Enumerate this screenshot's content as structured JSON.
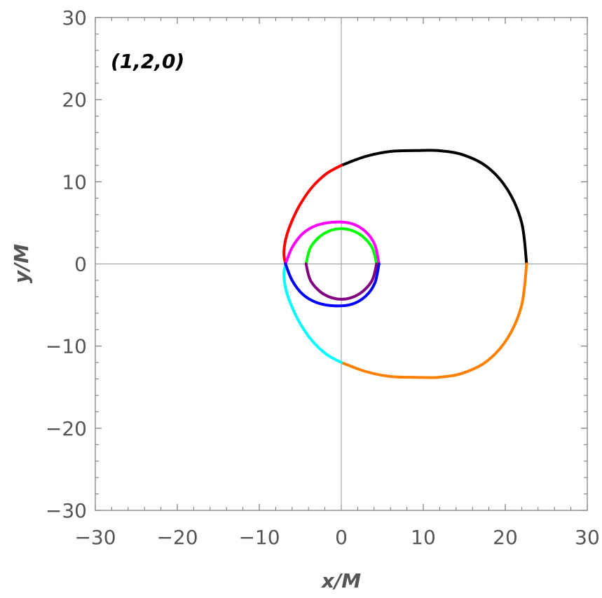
{
  "chart_data": {
    "type": "line",
    "title": "",
    "annotation": "(1,2,0)",
    "xlabel": "x/M",
    "ylabel": "y/M",
    "xlim": [
      -30,
      30
    ],
    "ylim": [
      -30,
      30
    ],
    "xticks": [
      -30,
      -20,
      -10,
      0,
      10,
      20,
      30
    ],
    "yticks": [
      -30,
      -20,
      -10,
      0,
      10,
      20,
      30
    ],
    "xtick_labels": [
      "−30",
      "−20",
      "−10",
      "0",
      "10",
      "20",
      "30"
    ],
    "ytick_labels": [
      "−30",
      "−20",
      "−10",
      "0",
      "10",
      "20",
      "30"
    ],
    "grid": false,
    "axes_through_origin": true,
    "series": [
      {
        "color": "#000000",
        "x": [
          22.6,
          22.0,
          20.3,
          17.8,
          14.8,
          11.8,
          9.0,
          6.0,
          3.0,
          0.0
        ],
        "y": [
          0.0,
          5.0,
          9.0,
          11.8,
          13.3,
          13.8,
          13.8,
          13.7,
          13.1,
          12.0
        ]
      },
      {
        "color": "#ff8000",
        "x": [
          22.6,
          22.0,
          20.3,
          17.8,
          14.8,
          11.8,
          9.0,
          6.0,
          3.0,
          0.0
        ],
        "y": [
          0.0,
          -5.0,
          -9.0,
          -11.8,
          -13.3,
          -13.8,
          -13.8,
          -13.7,
          -13.1,
          -12.0
        ]
      },
      {
        "color": "#ff0000",
        "x": [
          0.0,
          -1.8,
          -3.6,
          -5.1,
          -6.2,
          -6.8,
          -7.0,
          -6.8
        ],
        "y": [
          12.0,
          11.0,
          9.3,
          7.1,
          4.8,
          2.9,
          1.2,
          0.0
        ]
      },
      {
        "color": "#00ffff",
        "x": [
          0.0,
          -1.8,
          -3.6,
          -5.1,
          -6.2,
          -6.8,
          -7.0,
          -6.8
        ],
        "y": [
          -12.0,
          -11.0,
          -9.3,
          -7.1,
          -4.8,
          -2.9,
          -1.2,
          0.0
        ]
      },
      {
        "color": "#ff00ff",
        "x": [
          -6.8,
          -6.0,
          -4.7,
          -3.0,
          -0.8,
          1.3,
          3.0,
          4.1,
          4.6
        ],
        "y": [
          0.0,
          2.0,
          3.7,
          4.7,
          5.1,
          4.9,
          3.9,
          2.3,
          0.0
        ]
      },
      {
        "color": "#0000ff",
        "x": [
          -6.8,
          -6.0,
          -4.7,
          -3.0,
          -0.8,
          1.3,
          3.0,
          4.1,
          4.6
        ],
        "y": [
          0.0,
          -2.0,
          -3.7,
          -4.7,
          -5.1,
          -4.9,
          -3.9,
          -2.3,
          0.0
        ]
      },
      {
        "color": "#00ff00",
        "x": [
          -4.3,
          -3.7,
          -2.1,
          0.0,
          2.1,
          3.7,
          4.3
        ],
        "y": [
          0.0,
          2.1,
          3.7,
          4.3,
          3.7,
          2.1,
          0.0
        ]
      },
      {
        "color": "#800080",
        "x": [
          -4.3,
          -3.7,
          -2.1,
          0.0,
          2.1,
          3.7,
          4.3
        ],
        "y": [
          0.0,
          -2.1,
          -3.7,
          -4.3,
          -3.7,
          -2.1,
          0.0
        ]
      }
    ]
  }
}
